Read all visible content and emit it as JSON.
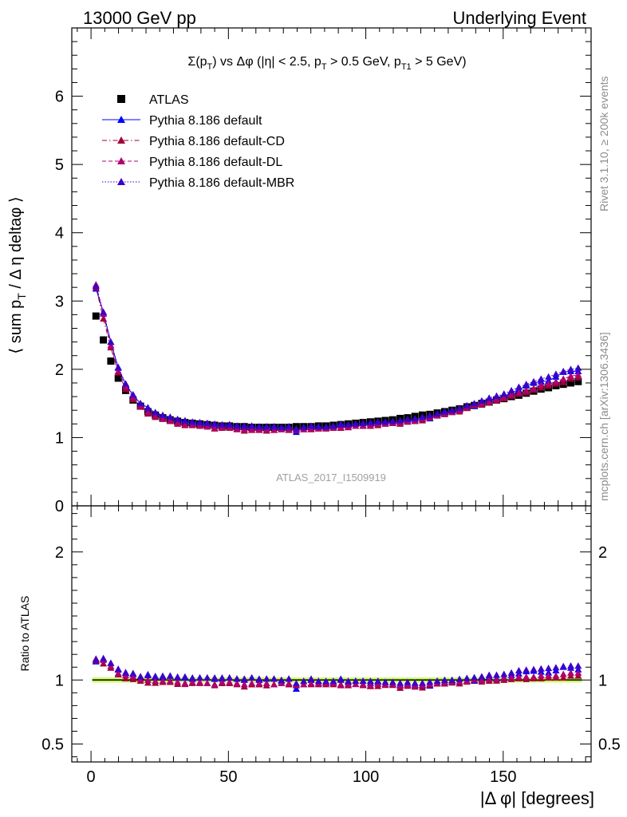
{
  "header": {
    "left": "13000 GeV pp",
    "right": "Underlying Event"
  },
  "side_labels": {
    "rivet": "Rivet 3.1.10, ≥ 200k events",
    "mcplots": "mcplots.cern.ch [arXiv:1306.3436]"
  },
  "watermark": "ATLAS_2017_I1509919",
  "colors": {
    "atlas": "#000000",
    "default": "#0000ff",
    "cd": "#a0003a",
    "dl": "#b0006e",
    "mbr": "#3c00c8",
    "band": "#ccff66"
  },
  "chart_data": [
    {
      "type": "scatter",
      "title": "Σ(pT) vs Δφ (|η| < 2.5, pT > 0.5 GeV, pT1 > 5 GeV)",
      "title_parts": {
        "t1": "Σ(p",
        "t1_sub": "T",
        "t2": ") vs Δφ (|η| < 2.5, p",
        "t2_sub": "T",
        "t3": " > 0.5 GeV, p",
        "t3_sub": "T1",
        "t4": " > 5 GeV)"
      },
      "ylabel": "⟨ sum pT / Δ η deltaφ ⟩",
      "ylabel_parts": {
        "a": "⟨ sum p",
        "sub": "T",
        "b": " / Δ η deltaφ ⟩"
      },
      "xlim": [
        -7,
        182
      ],
      "ylim": [
        0,
        7
      ],
      "y_ticks": [
        0,
        1,
        2,
        3,
        4,
        5,
        6
      ],
      "x": [
        1.8,
        4.5,
        7.2,
        9.9,
        12.6,
        15.3,
        18.0,
        20.7,
        23.4,
        26.1,
        28.8,
        31.5,
        34.2,
        36.9,
        39.6,
        42.3,
        45.0,
        47.7,
        50.4,
        53.1,
        55.8,
        58.5,
        61.2,
        63.9,
        66.6,
        69.3,
        72.0,
        74.7,
        77.4,
        80.1,
        82.8,
        85.5,
        88.2,
        90.9,
        93.6,
        96.3,
        99.0,
        101.7,
        104.4,
        107.1,
        109.8,
        112.5,
        115.2,
        117.9,
        120.6,
        123.3,
        126.0,
        128.7,
        131.4,
        134.1,
        136.8,
        139.5,
        142.2,
        144.9,
        147.6,
        150.3,
        153.0,
        155.7,
        158.4,
        161.1,
        163.8,
        166.5,
        169.2,
        171.9,
        174.6,
        177.3
      ],
      "legend": [
        {
          "name": "ATLAS",
          "key": "atlas",
          "marker": "square",
          "line": "none"
        },
        {
          "name": "Pythia 8.186 default",
          "key": "default",
          "marker": "triangle",
          "line": "solid"
        },
        {
          "name": "Pythia 8.186 default-CD",
          "key": "cd",
          "marker": "triangle",
          "line": "dashdot"
        },
        {
          "name": "Pythia 8.186 default-DL",
          "key": "dl",
          "marker": "triangle",
          "line": "dashed"
        },
        {
          "name": "Pythia 8.186 default-MBR",
          "key": "mbr",
          "marker": "triangle",
          "line": "dotted"
        }
      ],
      "series": [
        {
          "name": "ATLAS",
          "key": "atlas",
          "values": [
            2.78,
            2.43,
            2.12,
            1.87,
            1.69,
            1.55,
            1.46,
            1.38,
            1.33,
            1.29,
            1.26,
            1.24,
            1.22,
            1.21,
            1.2,
            1.19,
            1.18,
            1.17,
            1.17,
            1.16,
            1.16,
            1.15,
            1.15,
            1.15,
            1.15,
            1.15,
            1.15,
            1.16,
            1.16,
            1.16,
            1.17,
            1.17,
            1.18,
            1.19,
            1.2,
            1.21,
            1.22,
            1.23,
            1.24,
            1.25,
            1.26,
            1.28,
            1.29,
            1.31,
            1.33,
            1.34,
            1.36,
            1.38,
            1.4,
            1.42,
            1.45,
            1.47,
            1.5,
            1.52,
            1.55,
            1.57,
            1.6,
            1.62,
            1.65,
            1.68,
            1.71,
            1.73,
            1.76,
            1.78,
            1.8,
            1.82
          ]
        },
        {
          "name": "Pythia 8.186 default",
          "key": "default",
          "values": [
            3.18,
            2.83,
            2.4,
            2.02,
            1.78,
            1.62,
            1.5,
            1.44,
            1.36,
            1.32,
            1.3,
            1.26,
            1.24,
            1.22,
            1.22,
            1.21,
            1.19,
            1.18,
            1.19,
            1.17,
            1.16,
            1.17,
            1.15,
            1.16,
            1.16,
            1.14,
            1.16,
            1.08,
            1.15,
            1.16,
            1.16,
            1.15,
            1.16,
            1.2,
            1.18,
            1.2,
            1.21,
            1.2,
            1.22,
            1.23,
            1.22,
            1.23,
            1.25,
            1.26,
            1.27,
            1.28,
            1.33,
            1.36,
            1.39,
            1.4,
            1.44,
            1.46,
            1.51,
            1.56,
            1.57,
            1.6,
            1.66,
            1.7,
            1.76,
            1.8,
            1.82,
            1.83,
            1.89,
            1.96,
            1.97,
            1.97
          ]
        },
        {
          "name": "Pythia 8.186 default-CD",
          "key": "cd",
          "values": [
            3.2,
            2.74,
            2.32,
            1.95,
            1.71,
            1.56,
            1.45,
            1.35,
            1.3,
            1.27,
            1.24,
            1.2,
            1.18,
            1.18,
            1.17,
            1.16,
            1.13,
            1.14,
            1.14,
            1.12,
            1.1,
            1.11,
            1.11,
            1.1,
            1.11,
            1.12,
            1.11,
            1.11,
            1.12,
            1.12,
            1.13,
            1.13,
            1.14,
            1.14,
            1.15,
            1.17,
            1.17,
            1.17,
            1.18,
            1.2,
            1.21,
            1.2,
            1.23,
            1.24,
            1.25,
            1.29,
            1.32,
            1.34,
            1.37,
            1.38,
            1.43,
            1.47,
            1.48,
            1.51,
            1.54,
            1.57,
            1.61,
            1.64,
            1.66,
            1.7,
            1.73,
            1.76,
            1.79,
            1.81,
            1.86,
            1.88
          ]
        },
        {
          "name": "Pythia 8.186 default-DL",
          "key": "dl",
          "values": [
            3.24,
            2.81,
            2.35,
            1.97,
            1.75,
            1.59,
            1.47,
            1.38,
            1.32,
            1.28,
            1.25,
            1.22,
            1.19,
            1.19,
            1.18,
            1.16,
            1.14,
            1.15,
            1.15,
            1.13,
            1.12,
            1.12,
            1.12,
            1.12,
            1.11,
            1.12,
            1.12,
            1.12,
            1.12,
            1.13,
            1.14,
            1.14,
            1.15,
            1.15,
            1.16,
            1.17,
            1.18,
            1.18,
            1.2,
            1.21,
            1.22,
            1.22,
            1.24,
            1.25,
            1.28,
            1.3,
            1.33,
            1.35,
            1.38,
            1.4,
            1.44,
            1.48,
            1.5,
            1.53,
            1.56,
            1.59,
            1.63,
            1.66,
            1.69,
            1.72,
            1.77,
            1.79,
            1.82,
            1.86,
            1.9,
            1.92
          ]
        },
        {
          "name": "Pythia 8.186 default-MBR",
          "key": "mbr",
          "values": [
            3.22,
            2.84,
            2.4,
            2.03,
            1.79,
            1.63,
            1.5,
            1.43,
            1.37,
            1.33,
            1.3,
            1.27,
            1.25,
            1.23,
            1.22,
            1.21,
            1.2,
            1.19,
            1.19,
            1.17,
            1.17,
            1.17,
            1.16,
            1.16,
            1.16,
            1.15,
            1.16,
            1.13,
            1.15,
            1.17,
            1.16,
            1.16,
            1.17,
            1.19,
            1.19,
            1.2,
            1.21,
            1.22,
            1.23,
            1.23,
            1.24,
            1.25,
            1.27,
            1.28,
            1.3,
            1.32,
            1.35,
            1.38,
            1.4,
            1.43,
            1.47,
            1.5,
            1.54,
            1.58,
            1.61,
            1.64,
            1.69,
            1.74,
            1.78,
            1.82,
            1.86,
            1.89,
            1.93,
            1.97,
            2.0,
            2.02
          ]
        }
      ]
    },
    {
      "type": "scatter",
      "title": "Ratio to ATLAS",
      "xlabel": "|Δ φ| [degrees]",
      "ylabel": "Ratio to ATLAS",
      "xlim": [
        -7,
        182
      ],
      "ylim": [
        0.36,
        2.36
      ],
      "x_ticks": [
        0,
        50,
        100,
        150
      ],
      "y_tick_labels": [
        {
          "value": 0.5,
          "label": "0.5"
        },
        {
          "value": 1,
          "label": "1"
        },
        {
          "value": 2,
          "label": "2"
        }
      ],
      "band": [
        0.98,
        1.02
      ],
      "series": [
        {
          "name": "Pythia 8.186 default",
          "key": "default",
          "values": [
            1.144,
            1.165,
            1.132,
            1.08,
            1.053,
            1.045,
            1.027,
            1.043,
            1.023,
            1.023,
            1.032,
            1.016,
            1.016,
            1.008,
            1.017,
            1.017,
            1.008,
            1.009,
            1.017,
            1.009,
            1.0,
            1.017,
            1.0,
            1.009,
            1.009,
            0.991,
            1.009,
            0.931,
            0.991,
            1.0,
            0.991,
            0.983,
            0.983,
            1.008,
            0.983,
            0.992,
            0.992,
            0.976,
            0.984,
            0.984,
            0.968,
            0.961,
            0.969,
            0.962,
            0.955,
            0.955,
            0.978,
            0.986,
            0.993,
            0.986,
            0.993,
            0.993,
            1.007,
            1.026,
            1.013,
            1.019,
            1.038,
            1.049,
            1.067,
            1.071,
            1.064,
            1.058,
            1.074,
            1.101,
            1.094,
            1.082
          ]
        },
        {
          "name": "Pythia 8.186 default-CD",
          "key": "cd",
          "values": [
            1.151,
            1.128,
            1.094,
            1.043,
            1.012,
            1.006,
            0.993,
            0.978,
            0.977,
            0.984,
            0.984,
            0.968,
            0.967,
            0.975,
            0.975,
            0.975,
            0.958,
            0.974,
            0.974,
            0.966,
            0.948,
            0.965,
            0.965,
            0.957,
            0.965,
            0.974,
            0.965,
            0.957,
            0.966,
            0.966,
            0.966,
            0.966,
            0.966,
            0.958,
            0.958,
            0.967,
            0.959,
            0.951,
            0.952,
            0.96,
            0.96,
            0.938,
            0.953,
            0.947,
            0.94,
            0.963,
            0.971,
            0.971,
            0.979,
            0.972,
            0.986,
            1.0,
            0.987,
            0.993,
            0.994,
            1.0,
            1.006,
            1.012,
            1.006,
            1.012,
            1.012,
            1.017,
            1.017,
            1.017,
            1.033,
            1.033
          ]
        },
        {
          "name": "Pythia 8.186 default-DL",
          "key": "dl",
          "values": [
            1.165,
            1.156,
            1.108,
            1.053,
            1.036,
            1.026,
            1.007,
            1.0,
            0.992,
            0.992,
            0.992,
            0.984,
            0.975,
            0.983,
            0.983,
            0.975,
            0.966,
            0.983,
            0.983,
            0.974,
            0.966,
            0.974,
            0.974,
            0.974,
            0.965,
            0.974,
            0.974,
            0.966,
            0.966,
            0.974,
            0.974,
            0.974,
            0.975,
            0.966,
            0.967,
            0.967,
            0.967,
            0.959,
            0.968,
            0.968,
            0.968,
            0.953,
            0.961,
            0.954,
            0.962,
            0.97,
            0.978,
            0.978,
            0.986,
            0.986,
            0.993,
            1.007,
            1.0,
            1.007,
            1.006,
            1.013,
            1.019,
            1.025,
            1.024,
            1.024,
            1.035,
            1.035,
            1.034,
            1.045,
            1.056,
            1.055
          ]
        },
        {
          "name": "Pythia 8.186 default-MBR",
          "key": "mbr",
          "values": [
            1.158,
            1.169,
            1.132,
            1.086,
            1.059,
            1.052,
            1.027,
            1.036,
            1.03,
            1.031,
            1.032,
            1.024,
            1.025,
            1.017,
            1.017,
            1.017,
            1.017,
            1.017,
            1.017,
            1.009,
            1.009,
            1.017,
            1.009,
            1.009,
            1.009,
            1.0,
            1.009,
            0.974,
            0.991,
            1.009,
            0.991,
            0.991,
            0.992,
            1.0,
            0.992,
            0.992,
            0.992,
            0.992,
            0.992,
            0.984,
            0.984,
            0.977,
            0.984,
            0.977,
            0.977,
            0.985,
            0.993,
            1.0,
            1.0,
            1.007,
            1.014,
            1.02,
            1.027,
            1.039,
            1.039,
            1.045,
            1.056,
            1.074,
            1.079,
            1.083,
            1.088,
            1.092,
            1.097,
            1.107,
            1.111,
            1.11
          ]
        }
      ]
    }
  ]
}
